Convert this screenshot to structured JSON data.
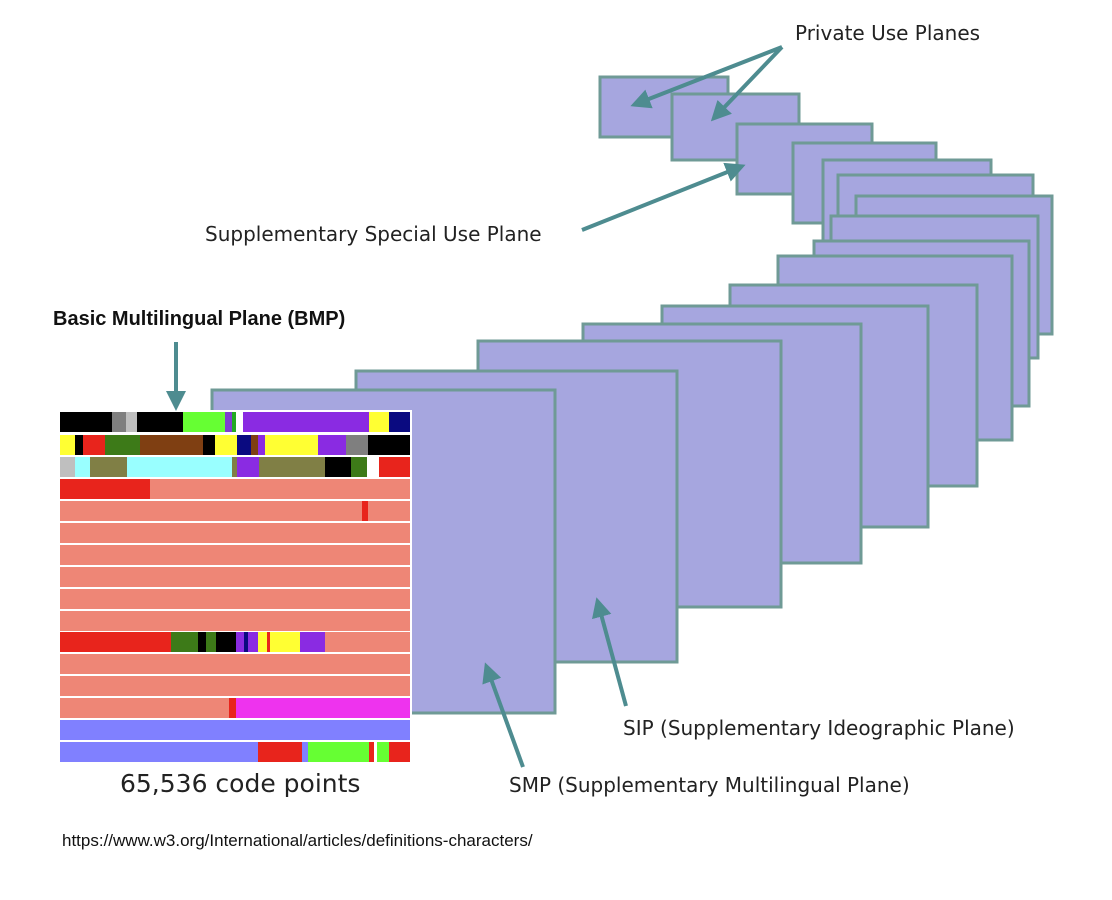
{
  "labels": {
    "private_use_planes": "Private Use Planes",
    "supplementary_special_use_plane": "Supplementary Special Use Plane",
    "bmp": "Basic Multilingual Plane (BMP)",
    "code_points": "65,536 code points",
    "sip": "SIP (Supplementary Ideographic Plane)",
    "smp": "SMP (Supplementary Multilingual Plane)",
    "source_url": "https://www.w3.org/International/articles/definitions-characters/"
  },
  "colors": {
    "plane_fill": "#a6a6df",
    "plane_border": "#6f9a96",
    "arrow": "#4e8c90",
    "bmp_cell_default": "#ee8676"
  }
}
